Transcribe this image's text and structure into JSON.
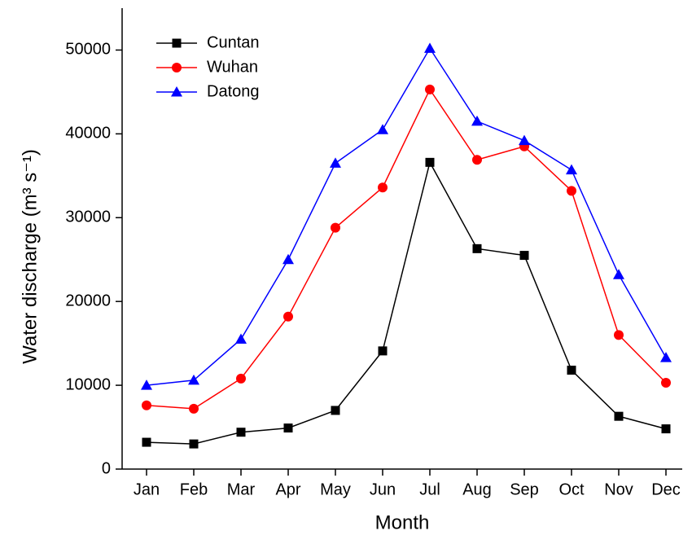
{
  "chart_data": {
    "type": "line",
    "xlabel": "Month",
    "ylabel": "Water discharge (m³ s⁻¹)",
    "categories": [
      "Jan",
      "Feb",
      "Mar",
      "Apr",
      "May",
      "Jun",
      "Jul",
      "Aug",
      "Sep",
      "Oct",
      "Nov",
      "Dec"
    ],
    "series": [
      {
        "name": "Cuntan",
        "color": "#000000",
        "marker": "square",
        "values": [
          3200,
          3000,
          4400,
          4900,
          7000,
          14100,
          36600,
          26300,
          25500,
          11800,
          6300,
          4800
        ]
      },
      {
        "name": "Wuhan",
        "color": "#ff0000",
        "marker": "circle",
        "values": [
          7600,
          7200,
          10800,
          18200,
          28800,
          33600,
          45300,
          36900,
          38500,
          33200,
          16000,
          10300
        ]
      },
      {
        "name": "Datong",
        "color": "#0000ff",
        "marker": "triangle",
        "values": [
          10000,
          10600,
          15500,
          25000,
          36500,
          40500,
          50200,
          41500,
          39200,
          35700,
          23200,
          13300
        ]
      }
    ],
    "ylim": [
      0,
      55000
    ],
    "yticks": [
      0,
      10000,
      20000,
      30000,
      40000,
      50000
    ],
    "grid": false,
    "legend": "top-left"
  }
}
